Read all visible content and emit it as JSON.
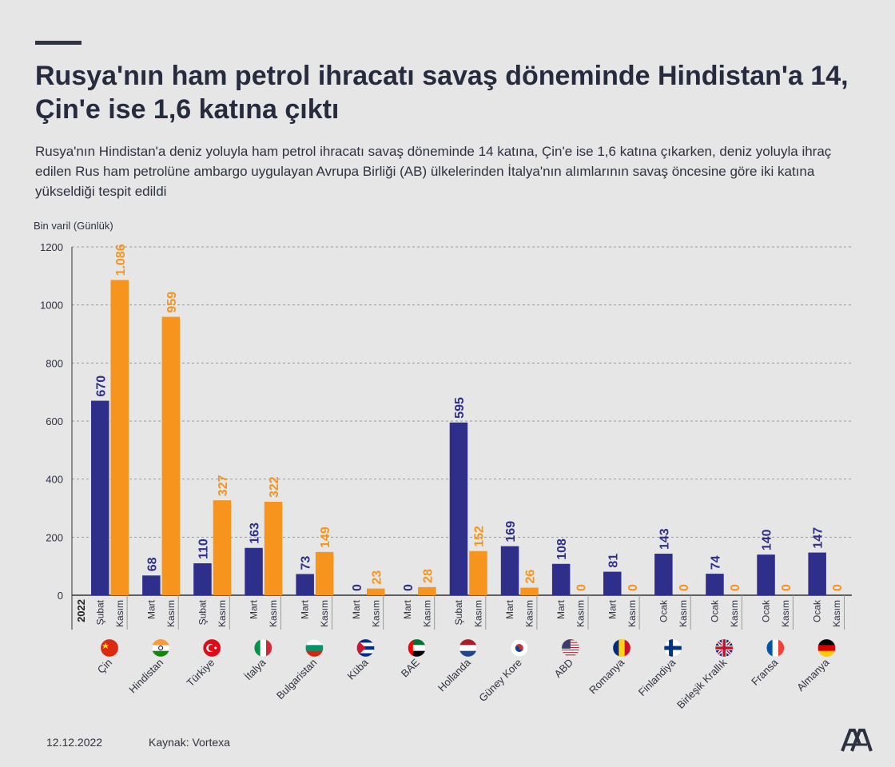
{
  "header": {
    "title": "Rusya'nın ham petrol ihracatı savaş döneminde Hindistan'a 14, Çin'e ise 1,6 katına çıktı",
    "subtitle": "Rusya'nın Hindistan'a deniz yoluyla ham petrol ihracatı savaş döneminde 14 katına, Çin'e ise 1,6 katına çıkarken, deniz yoluyla ihraç edilen Rus ham petrolüne ambargo uygulayan Avrupa Birliği (AB) ülkelerinden İtalya'nın alımlarının savaş öncesine göre iki katına yükseldiği tespit edildi"
  },
  "footer": {
    "date": "12.12.2022",
    "source": "Kaynak: Vortexa"
  },
  "colors": {
    "before": "#2e2f8a",
    "after": "#f7941d",
    "grid": "#9a9a9a",
    "axis": "#333333"
  },
  "chart_data": {
    "type": "bar",
    "ylabel": "Bin varil (Günlük)",
    "ylim": [
      0,
      1200
    ],
    "yticks": [
      0,
      200,
      400,
      600,
      800,
      1000,
      1200
    ],
    "year_label": "2022",
    "grid": true,
    "categories": [
      "Çin",
      "Hindistan",
      "Türkiye",
      "İtalya",
      "Bulgaristan",
      "Küba",
      "BAE",
      "Hollanda",
      "Güney Kore",
      "ABD",
      "Romanya",
      "Finlandiya",
      "Birleşik Krallık",
      "Fransa",
      "Almanya"
    ],
    "flag_icons": [
      "china-flag-icon",
      "india-flag-icon",
      "turkey-flag-icon",
      "italy-flag-icon",
      "bulgaria-flag-icon",
      "cuba-flag-icon",
      "uae-flag-icon",
      "netherlands-flag-icon",
      "south-korea-flag-icon",
      "usa-flag-icon",
      "romania-flag-icon",
      "finland-flag-icon",
      "uk-flag-icon",
      "france-flag-icon",
      "germany-flag-icon"
    ],
    "series": [
      {
        "months": [
          "Şubat",
          "Mart",
          "Şubat",
          "Mart",
          "Mart",
          "Mart",
          "Mart",
          "Şubat",
          "Mart",
          "Mart",
          "Mart",
          "Ocak",
          "Ocak",
          "Ocak",
          "Ocak"
        ],
        "values": [
          670,
          68,
          110,
          163,
          73,
          0,
          0,
          595,
          169,
          108,
          81,
          143,
          74,
          140,
          147
        ],
        "labels": [
          "670",
          "68",
          "110",
          "163",
          "73",
          "0",
          "0",
          "595",
          "169",
          "108",
          "81",
          "143",
          "74",
          "140",
          "147"
        ]
      },
      {
        "months": [
          "Kasım",
          "Kasım",
          "Kasım",
          "Kasım",
          "Kasım",
          "Kasım",
          "Kasım",
          "Kasım",
          "Kasım",
          "Kasım",
          "Kasım",
          "Kasım",
          "Kasım",
          "Kasım",
          "Kasım"
        ],
        "values": [
          1086,
          959,
          327,
          322,
          149,
          23,
          28,
          152,
          26,
          0,
          0,
          0,
          0,
          0,
          0
        ],
        "labels": [
          "1.086",
          "959",
          "327",
          "322",
          "149",
          "23",
          "28",
          "152",
          "26",
          "0",
          "0",
          "0",
          "0",
          "0",
          "0"
        ]
      }
    ]
  }
}
